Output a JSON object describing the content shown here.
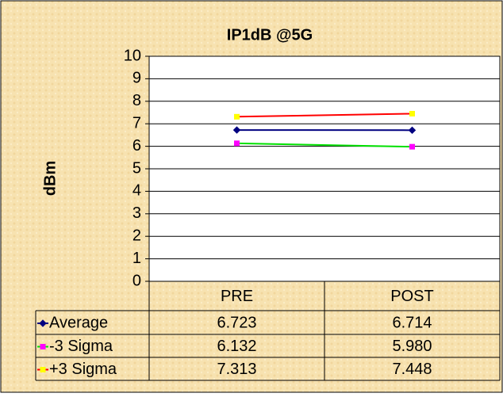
{
  "chart_data": {
    "type": "line",
    "title": "IP1dB @5G",
    "y_label": "dBm",
    "categories": [
      "PRE",
      "POST"
    ],
    "series": [
      {
        "name": "Average",
        "color": "#000080",
        "marker_color": "#000080",
        "values": [
          6.723,
          6.714
        ]
      },
      {
        "name": "-3 Sigma",
        "color": "#00e000",
        "marker_color": "#ff00ff",
        "values": [
          6.132,
          5.98
        ],
        "value_labels": [
          "6.132",
          "5.980"
        ]
      },
      {
        "name": "+3 Sigma",
        "color": "#ff0000",
        "marker_color": "#ffff00",
        "values": [
          7.313,
          7.448
        ]
      }
    ],
    "ylim": [
      0,
      10
    ],
    "yticks": [
      0,
      1,
      2,
      3,
      4,
      5,
      6,
      7,
      8,
      9,
      10
    ],
    "grid": true
  }
}
